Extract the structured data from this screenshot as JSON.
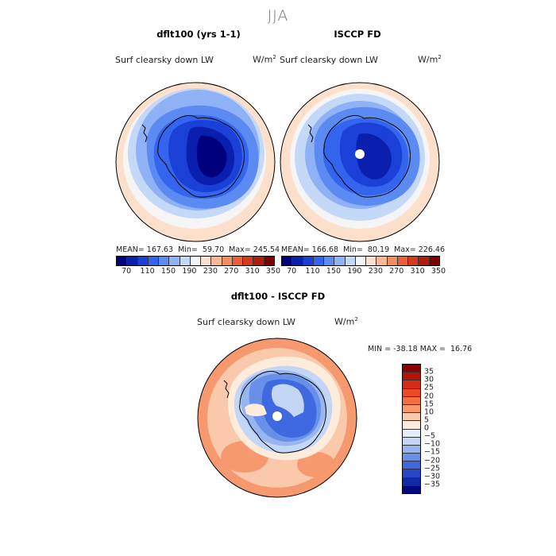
{
  "title": "JJA",
  "panels": [
    {
      "title": "dflt100 (yrs 1-1)",
      "variable": "Surf clearsky down LW",
      "units": "W/m",
      "units_exp": "2",
      "stats": "MEAN= 167.63  Min=  59.70  Max= 245.54"
    },
    {
      "title": "ISCCP FD",
      "variable": "Surf clearsky down LW",
      "units": "W/m",
      "units_exp": "2",
      "stats": "MEAN= 166.68  Min=  80.19  Max= 226.46"
    },
    {
      "title": "dflt100 - ISCCP FD",
      "variable": "Surf clearsky down LW",
      "units": "W/m",
      "units_exp": "2",
      "stats": "MIN = -38.18 MAX =  16.76"
    }
  ],
  "chart_data": [
    {
      "type": "heatmap",
      "projection": "south polar stereographic",
      "title": "dflt100 (yrs 1-1)",
      "subtitle": "Surf clearsky down LW",
      "units": "W/m^2",
      "mean": 167.63,
      "min": 59.7,
      "max": 245.54,
      "colorbar_ticks": [
        70,
        110,
        150,
        190,
        230,
        270,
        310,
        350
      ]
    },
    {
      "type": "heatmap",
      "projection": "south polar stereographic",
      "title": "ISCCP FD",
      "subtitle": "Surf clearsky down LW",
      "units": "W/m^2",
      "mean": 166.68,
      "min": 80.19,
      "max": 226.46,
      "colorbar_ticks": [
        70,
        110,
        150,
        190,
        230,
        270,
        310,
        350
      ]
    },
    {
      "type": "heatmap",
      "projection": "south polar stereographic",
      "title": "dflt100 - ISCCP FD",
      "subtitle": "Surf clearsky down LW",
      "units": "W/m^2",
      "min": -38.18,
      "max": 16.76,
      "colorbar_ticks": [
        35,
        30,
        25,
        20,
        15,
        10,
        5,
        0,
        -5,
        -10,
        -15,
        -20,
        -25,
        -30,
        -35
      ]
    }
  ],
  "colors": {
    "abs_scale": [
      "#00007f",
      "#0a1fae",
      "#1a40d8",
      "#3565ee",
      "#5b8af2",
      "#8fb1f5",
      "#c4d8f8",
      "#f5f5f5",
      "#fde0cc",
      "#f8b896",
      "#f28c64",
      "#e95f3e",
      "#d43a1f",
      "#b21d0d",
      "#7f0000"
    ],
    "diff_scale": [
      "#8b0000",
      "#b31309",
      "#d62b14",
      "#ec4a24",
      "#f2703f",
      "#f6996e",
      "#fac8aa",
      "#fdebdc",
      "#e5eefa",
      "#c4d6f5",
      "#97b6ef",
      "#6890e8",
      "#3f69e0",
      "#2547c8",
      "#1229a6",
      "#000a80"
    ]
  }
}
